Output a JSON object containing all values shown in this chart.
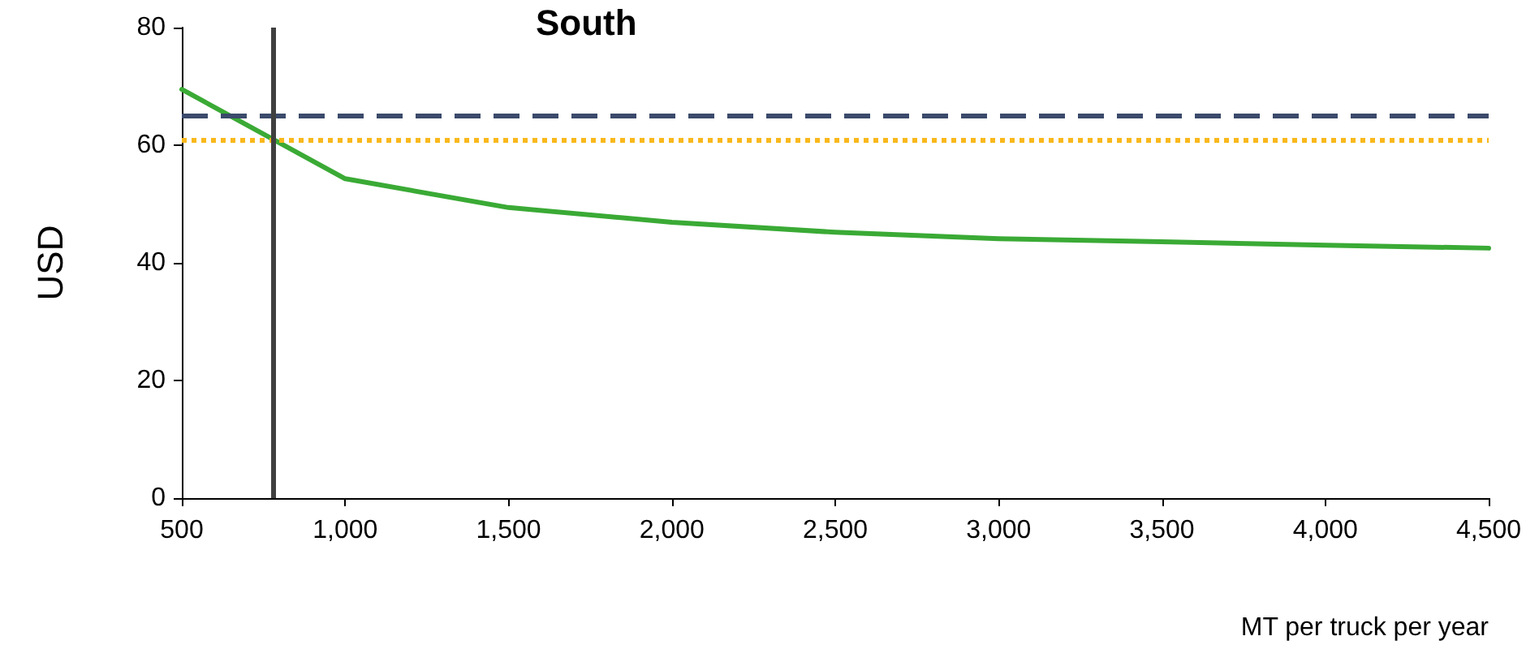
{
  "chart_data": {
    "type": "line",
    "title": "South",
    "xlabel": "MT per truck per year",
    "ylabel": "USD",
    "x": [
      500,
      1000,
      1500,
      2000,
      2500,
      3000,
      3500,
      4000,
      4500
    ],
    "series": [
      {
        "color": "#3aaa35",
        "values": [
          69.5,
          54.3,
          49.4,
          46.9,
          45.2,
          44.1,
          43.6,
          43.0,
          42.5
        ]
      }
    ],
    "xlim": [
      500,
      4500
    ],
    "xticks": [
      500,
      {
        "value": 1000,
        "label": "1,000"
      },
      {
        "value": 1500,
        "label": "1,500"
      },
      {
        "value": 2000,
        "label": "2,000"
      },
      {
        "value": 2500,
        "label": "2,500"
      },
      {
        "value": 3000,
        "label": "3,000"
      },
      {
        "value": 3500,
        "label": "3,500"
      },
      {
        "value": 4000,
        "label": "4,000"
      },
      {
        "value": 4500,
        "label": "4,500"
      }
    ],
    "ylim": [
      0,
      80
    ],
    "yticks": [
      0,
      20,
      40,
      60,
      80
    ],
    "ref_lines": [
      {
        "axis": "y",
        "value": 65,
        "label": null,
        "color": "#3b4a6b",
        "line_style": "dashed"
      },
      {
        "axis": "y",
        "value": 61,
        "label": null,
        "color": "#f9b81b",
        "line_style": "dotted"
      },
      {
        "axis": "x",
        "value": 780,
        "label": null,
        "color": "#404040",
        "line_style": "solid"
      }
    ],
    "grid": false,
    "marker": "none",
    "line_style": "solid"
  }
}
